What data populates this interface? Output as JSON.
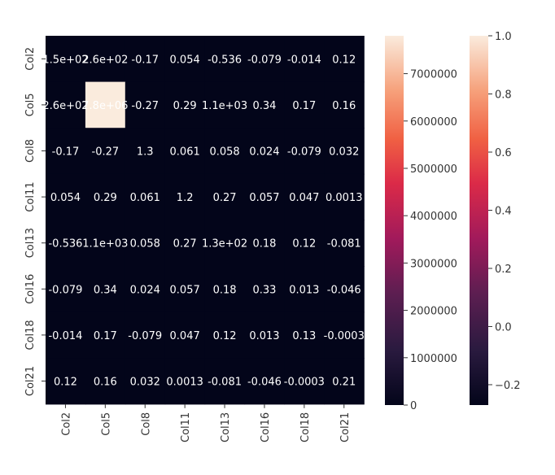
{
  "chart_data": {
    "type": "heatmap",
    "title": "",
    "xlabel": "",
    "ylabel": "",
    "x_categories": [
      "Col2",
      "Col5",
      "Col8",
      "Col11",
      "Col13",
      "Col16",
      "Col18",
      "Col21"
    ],
    "y_categories": [
      "Col2",
      "Col5",
      "Col8",
      "Col11",
      "Col13",
      "Col16",
      "Col18",
      "Col21"
    ],
    "cell_labels": [
      [
        "1.5e+02",
        "2.6e+02",
        "-0.17",
        "0.054",
        "-0.536",
        "-0.079",
        "-0.014",
        "0.12"
      ],
      [
        "2.6e+02",
        "7.8e+06",
        "-0.27",
        "0.29",
        "1.1e+03",
        "0.34",
        "0.17",
        "0.16"
      ],
      [
        "-0.17",
        "-0.27",
        "1.3",
        "0.061",
        "0.058",
        "0.024",
        "-0.079",
        "0.032"
      ],
      [
        "0.054",
        "0.29",
        "0.061",
        "1.2",
        "0.27",
        "0.057",
        "0.047",
        "0.0013"
      ],
      [
        "-0.536",
        "1.1e+03",
        "0.058",
        "0.27",
        "1.3e+02",
        "0.18",
        "0.12",
        "-0.081"
      ],
      [
        "-0.079",
        "0.34",
        "0.024",
        "0.057",
        "0.18",
        "0.33",
        "0.013",
        "-0.046"
      ],
      [
        "-0.014",
        "0.17",
        "-0.079",
        "0.047",
        "0.12",
        "0.013",
        "0.13",
        "-0.0003"
      ],
      [
        "0.12",
        "0.16",
        "0.032",
        "0.0013",
        "-0.081",
        "-0.046",
        "-0.0003",
        "0.21"
      ]
    ],
    "values": [
      [
        150,
        260,
        -0.17,
        0.054,
        -0.536,
        -0.079,
        -0.014,
        0.12
      ],
      [
        260,
        7800000,
        -0.27,
        0.29,
        1100,
        0.34,
        0.17,
        0.16
      ],
      [
        -0.17,
        -0.27,
        1.3,
        0.061,
        0.058,
        0.024,
        -0.079,
        0.032
      ],
      [
        0.054,
        0.29,
        0.061,
        1.2,
        0.27,
        0.057,
        0.047,
        0.0013
      ],
      [
        -0.536,
        1100,
        0.058,
        0.27,
        130,
        0.18,
        0.12,
        -0.081
      ],
      [
        -0.079,
        0.34,
        0.024,
        0.057,
        0.18,
        0.33,
        0.013,
        -0.046
      ],
      [
        -0.014,
        0.17,
        -0.079,
        0.047,
        0.12,
        0.013,
        0.13,
        -0.0003
      ],
      [
        0.12,
        0.16,
        0.032,
        0.0013,
        -0.081,
        -0.046,
        -0.0003,
        0.21
      ]
    ],
    "colorbars": [
      {
        "min": 0,
        "max": 7800000,
        "ticks": [
          "0",
          "1000000",
          "2000000",
          "3000000",
          "4000000",
          "5000000",
          "6000000",
          "7000000"
        ],
        "tick_values": [
          0,
          1000000,
          2000000,
          3000000,
          4000000,
          5000000,
          6000000,
          7000000
        ]
      },
      {
        "min": -0.27,
        "max": 1.0,
        "ticks": [
          "−0.2",
          "0.0",
          "0.2",
          "0.4",
          "0.6",
          "0.8",
          "1.0"
        ],
        "tick_values": [
          -0.2,
          0.0,
          0.2,
          0.4,
          0.6,
          0.8,
          1.0
        ]
      }
    ],
    "colormap": "rocket",
    "colors": {
      "low": "#03051a",
      "high": "#faebdd"
    }
  }
}
